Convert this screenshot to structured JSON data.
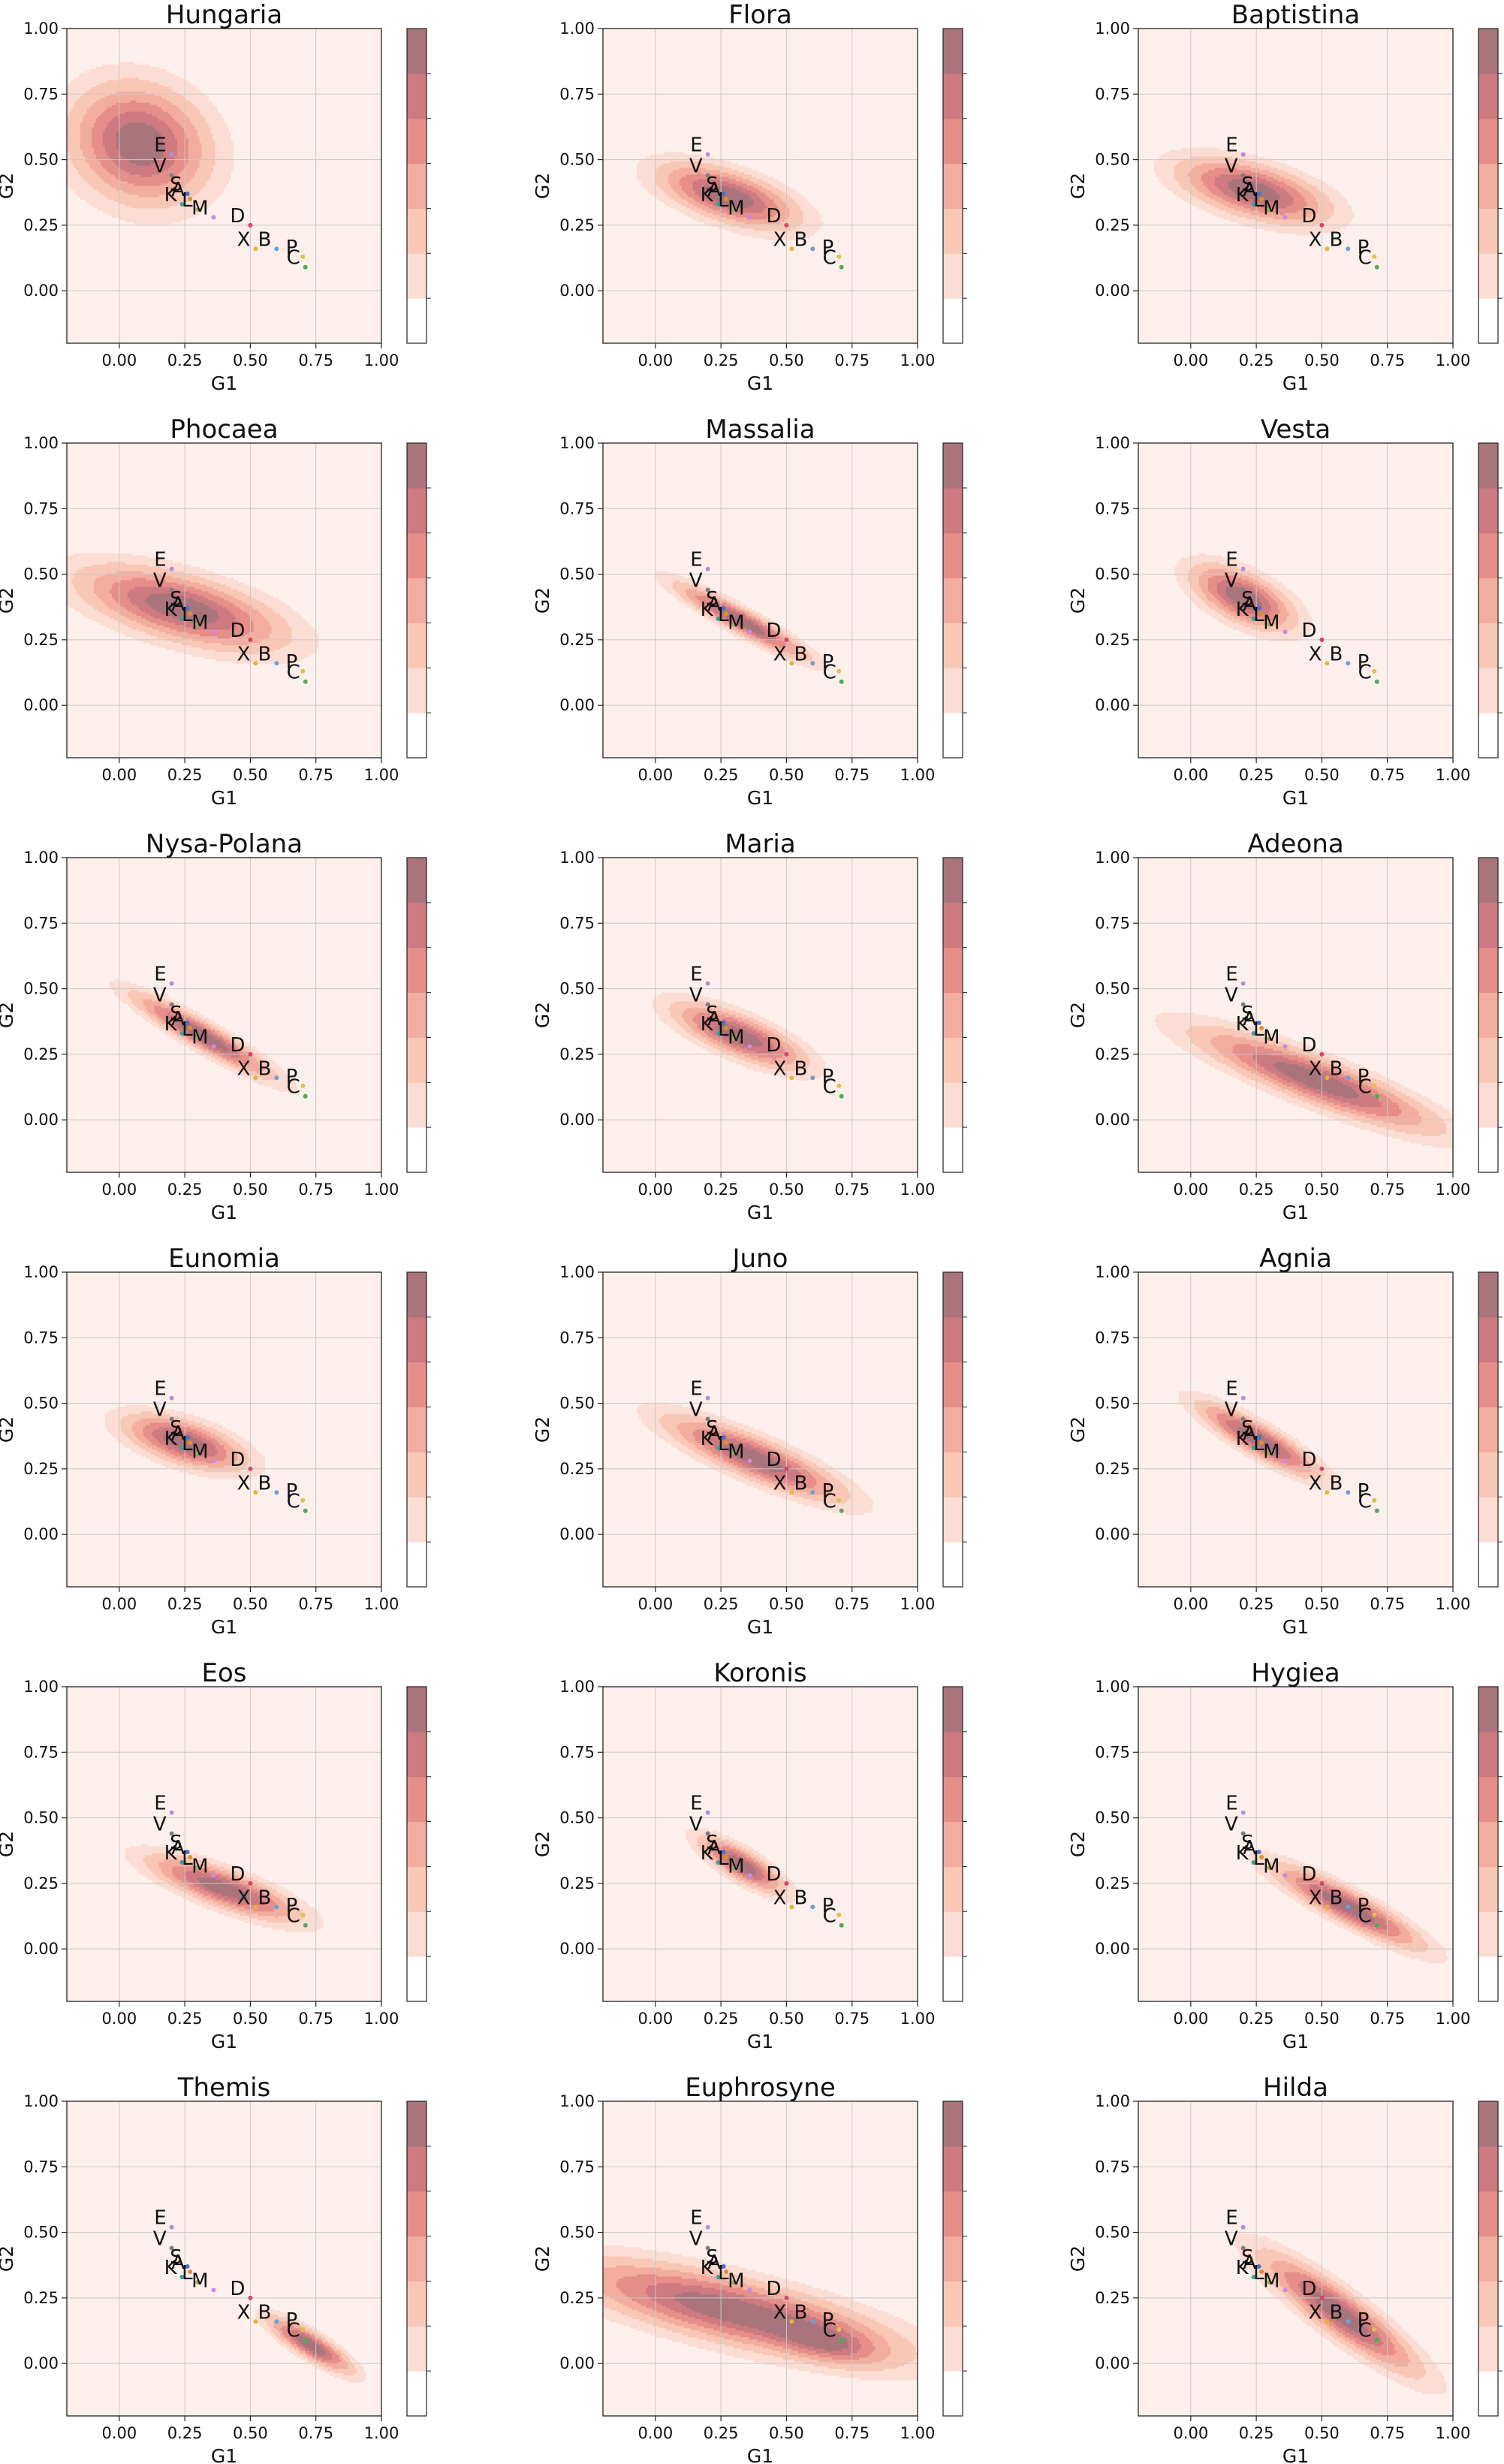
{
  "figure": {
    "rows": 6,
    "cols": 3,
    "palette": [
      "#fdf0ec",
      "#fcddd3",
      "#f9c7b6",
      "#f3ad9e",
      "#e68e8a",
      "#cd7a80",
      "#a9747c"
    ],
    "bg_color": "#fdf0ec",
    "grid_color": "#c8c8c8"
  },
  "chart_data": {
    "type": "contour",
    "xlabel": "G1",
    "ylabel": "G2",
    "xlim": [
      -0.2,
      1.0
    ],
    "ylim": [
      -0.2,
      1.0
    ],
    "xticks": [
      "0.00",
      "0.25",
      "0.50",
      "0.75",
      "1.00"
    ],
    "yticks": [
      "0.00",
      "0.25",
      "0.50",
      "0.75",
      "1.00"
    ],
    "classes": [
      {
        "label": "E",
        "x": 0.2,
        "y": 0.52,
        "color": "#b28fd6"
      },
      {
        "label": "V",
        "x": 0.2,
        "y": 0.44,
        "color": "#7f7f7f"
      },
      {
        "label": "S",
        "x": 0.26,
        "y": 0.37,
        "color": "#4a72c9"
      },
      {
        "label": "A",
        "x": 0.27,
        "y": 0.35,
        "color": "#e08f2e"
      },
      {
        "label": "K",
        "x": 0.24,
        "y": 0.33,
        "color": "#3aa39a"
      },
      {
        "label": "L",
        "x": 0.3,
        "y": 0.31,
        "color": "#8cb84a"
      },
      {
        "label": "M",
        "x": 0.36,
        "y": 0.28,
        "color": "#c98be0"
      },
      {
        "label": "D",
        "x": 0.5,
        "y": 0.25,
        "color": "#d6456a"
      },
      {
        "label": "X",
        "x": 0.52,
        "y": 0.16,
        "color": "#e6b43c"
      },
      {
        "label": "B",
        "x": 0.6,
        "y": 0.16,
        "color": "#6aa0d8"
      },
      {
        "label": "P",
        "x": 0.7,
        "y": 0.13,
        "color": "#e0c050"
      },
      {
        "label": "C",
        "x": 0.71,
        "y": 0.09,
        "color": "#4caf50"
      }
    ],
    "families": [
      {
        "name": "Hungaria",
        "blobs": [
          {
            "cx": 0.08,
            "cy": 0.56,
            "sx": 0.15,
            "sy": 0.13,
            "rho": -0.15,
            "w": 1
          }
        ]
      },
      {
        "name": "Flora",
        "blobs": [
          {
            "cx": 0.28,
            "cy": 0.36,
            "sx": 0.15,
            "sy": 0.07,
            "rho": -0.6,
            "w": 1
          }
        ]
      },
      {
        "name": "Baptistina",
        "blobs": [
          {
            "cx": 0.24,
            "cy": 0.38,
            "sx": 0.16,
            "sy": 0.07,
            "rho": -0.55,
            "w": 1
          }
        ]
      },
      {
        "name": "Phocaea",
        "blobs": [
          {
            "cx": 0.24,
            "cy": 0.37,
            "sx": 0.22,
            "sy": 0.09,
            "rho": -0.6,
            "w": 1
          }
        ]
      },
      {
        "name": "Massalia",
        "blobs": [
          {
            "cx": 0.33,
            "cy": 0.32,
            "sx": 0.14,
            "sy": 0.08,
            "rho": -0.93,
            "w": 1
          }
        ]
      },
      {
        "name": "Vesta",
        "blobs": [
          {
            "cx": 0.2,
            "cy": 0.41,
            "sx": 0.11,
            "sy": 0.07,
            "rho": -0.6,
            "w": 1
          }
        ]
      },
      {
        "name": "Nysa-Polana",
        "blobs": [
          {
            "cx": 0.32,
            "cy": 0.32,
            "sx": 0.15,
            "sy": 0.09,
            "rho": -0.93,
            "w": 1
          }
        ]
      },
      {
        "name": "Maria",
        "blobs": [
          {
            "cx": 0.32,
            "cy": 0.32,
            "sx": 0.14,
            "sy": 0.07,
            "rho": -0.75,
            "w": 1
          }
        ]
      },
      {
        "name": "Adeona",
        "blobs": [
          {
            "cx": 0.48,
            "cy": 0.15,
            "sx": 0.26,
            "sy": 0.11,
            "rho": -0.88,
            "w": 1
          }
        ]
      },
      {
        "name": "Eunomia",
        "blobs": [
          {
            "cx": 0.25,
            "cy": 0.35,
            "sx": 0.13,
            "sy": 0.06,
            "rho": -0.6,
            "w": 1
          }
        ]
      },
      {
        "name": "Juno",
        "blobs": [
          {
            "cx": 0.38,
            "cy": 0.29,
            "sx": 0.19,
            "sy": 0.09,
            "rho": -0.85,
            "w": 1
          }
        ]
      },
      {
        "name": "Agnia",
        "blobs": [
          {
            "cx": 0.26,
            "cy": 0.36,
            "sx": 0.13,
            "sy": 0.08,
            "rho": -0.88,
            "w": 1
          }
        ]
      },
      {
        "name": "Eos",
        "blobs": [
          {
            "cx": 0.4,
            "cy": 0.23,
            "sx": 0.16,
            "sy": 0.07,
            "rho": -0.8,
            "w": 1
          }
        ]
      },
      {
        "name": "Koronis",
        "blobs": [
          {
            "cx": 0.33,
            "cy": 0.32,
            "sx": 0.09,
            "sy": 0.06,
            "rho": -0.8,
            "w": 1
          }
        ]
      },
      {
        "name": "Hygiea",
        "blobs": [
          {
            "cx": 0.6,
            "cy": 0.16,
            "sx": 0.16,
            "sy": 0.09,
            "rho": -0.9,
            "w": 1
          }
        ]
      },
      {
        "name": "Themis",
        "blobs": [
          {
            "cx": 0.73,
            "cy": 0.07,
            "sx": 0.09,
            "sy": 0.06,
            "rho": -0.85,
            "w": 1
          }
        ]
      },
      {
        "name": "Euphrosyne",
        "blobs": [
          {
            "cx": 0.3,
            "cy": 0.2,
            "sx": 0.36,
            "sy": 0.11,
            "rho": -0.75,
            "w": 1
          },
          {
            "cx": 0.65,
            "cy": 0.08,
            "sx": 0.12,
            "sy": 0.05,
            "rho": -0.5,
            "w": 0.5
          }
        ]
      },
      {
        "name": "Hilda",
        "blobs": [
          {
            "cx": 0.57,
            "cy": 0.19,
            "sx": 0.17,
            "sy": 0.13,
            "rho": -0.9,
            "w": 1
          }
        ]
      }
    ]
  }
}
